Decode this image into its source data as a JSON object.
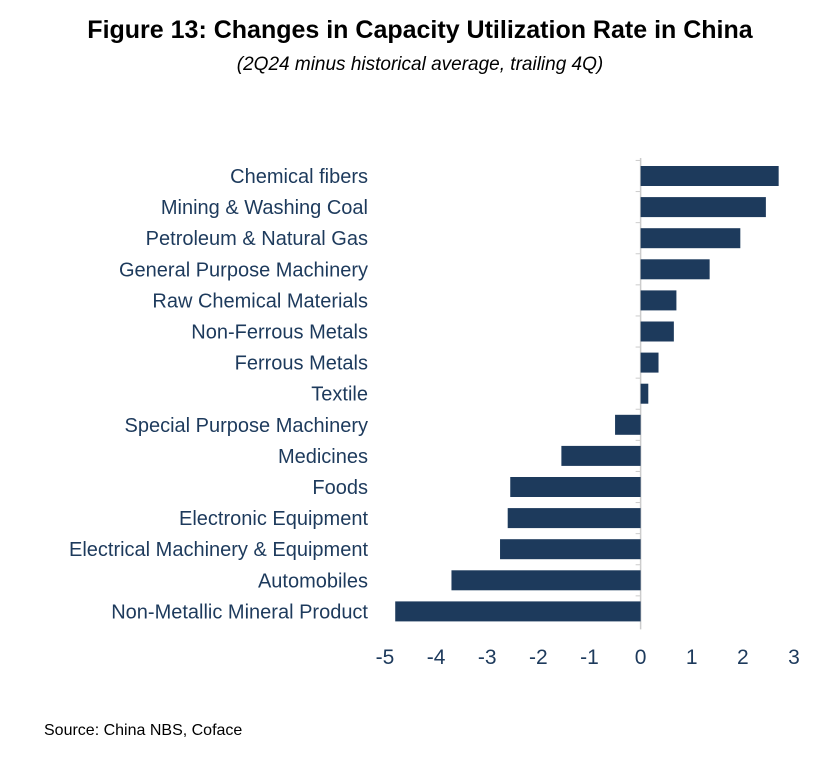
{
  "title": "Figure 13: Changes in Capacity Utilization Rate in China",
  "subtitle": "(2Q24 minus historical average, trailing 4Q)",
  "source": "Source: China NBS, Coface",
  "colors": {
    "bar": "#1d3a5c",
    "axis": "#cccccc",
    "label": "#1d3a5c"
  },
  "chart_data": {
    "type": "bar",
    "orientation": "horizontal",
    "title": "Figure 13: Changes in Capacity Utilization Rate in China",
    "subtitle": "(2Q24 minus historical average, trailing 4Q)",
    "xlabel": "",
    "ylabel": "",
    "xlim": [
      -5,
      3
    ],
    "xticks": [
      -5,
      -4,
      -3,
      -2,
      -1,
      0,
      1,
      2,
      3
    ],
    "grid": false,
    "categories": [
      "Chemical fibers",
      "Mining & Washing Coal",
      "Petroleum & Natural Gas",
      "General Purpose Machinery",
      "Raw Chemical Materials",
      "Non-Ferrous Metals",
      "Ferrous Metals",
      "Textile",
      "Special Purpose Machinery",
      "Medicines",
      "Foods",
      "Electronic Equipment",
      "Electrical Machinery & Equipment",
      "Automobiles",
      "Non-Metallic Mineral Product"
    ],
    "values": [
      2.7,
      2.45,
      1.95,
      1.35,
      0.7,
      0.65,
      0.35,
      0.15,
      -0.5,
      -1.55,
      -2.55,
      -2.6,
      -2.75,
      -3.7,
      -4.8
    ]
  }
}
